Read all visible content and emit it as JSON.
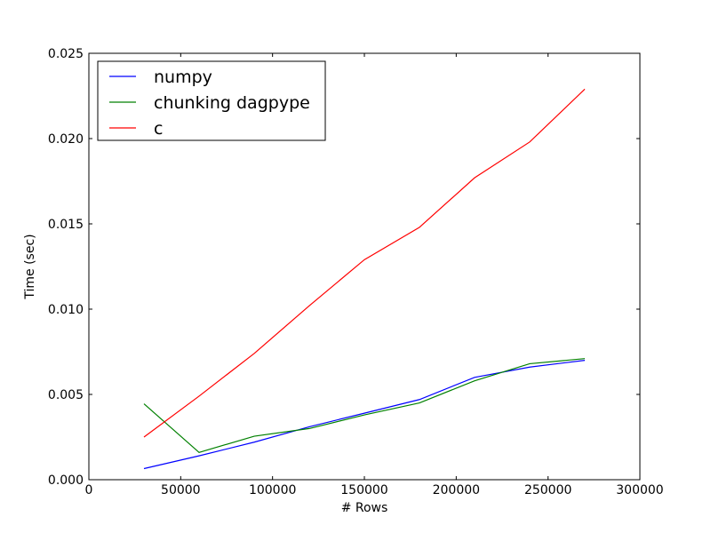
{
  "chart_data": {
    "type": "line",
    "xlabel": "# Rows",
    "ylabel": "Time (sec)",
    "xlim": [
      0,
      300000
    ],
    "ylim": [
      0,
      0.025
    ],
    "xticks": [
      0,
      50000,
      100000,
      150000,
      200000,
      250000,
      300000
    ],
    "xtick_labels": [
      "0",
      "50000",
      "100000",
      "150000",
      "200000",
      "250000",
      "300000"
    ],
    "yticks": [
      0,
      0.005,
      0.01,
      0.015,
      0.02,
      0.025
    ],
    "ytick_labels": [
      "0.000",
      "0.005",
      "0.010",
      "0.015",
      "0.020",
      "0.025"
    ],
    "grid": false,
    "legend": "top-left",
    "x": [
      30000,
      60000,
      90000,
      120000,
      150000,
      180000,
      210000,
      240000,
      270000
    ],
    "series": [
      {
        "name": "numpy",
        "color": "#0000ff",
        "values": [
          0.00065,
          0.0014,
          0.0022,
          0.0031,
          0.0039,
          0.0047,
          0.006,
          0.0066,
          0.007
        ]
      },
      {
        "name": "chunking dagpype",
        "color": "#008000",
        "values": [
          0.00445,
          0.0016,
          0.00255,
          0.003,
          0.0038,
          0.0045,
          0.0058,
          0.0068,
          0.0071
        ]
      },
      {
        "name": "c",
        "color": "#ff0000",
        "values": [
          0.0025,
          0.0049,
          0.0074,
          0.0102,
          0.0129,
          0.0148,
          0.0177,
          0.0198,
          0.0229
        ]
      }
    ]
  }
}
